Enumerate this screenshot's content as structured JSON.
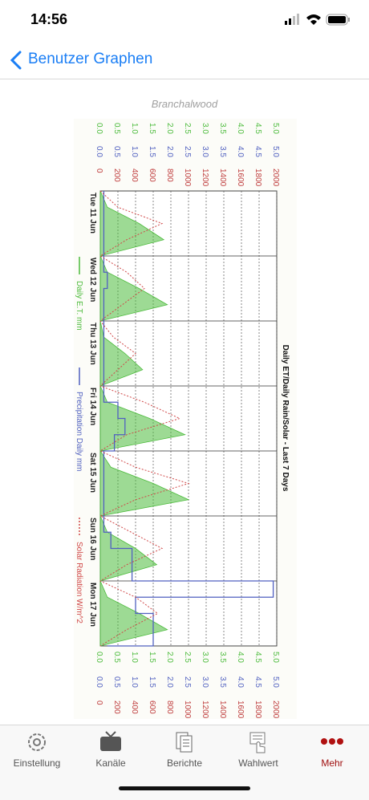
{
  "status_bar": {
    "time": "14:56"
  },
  "nav": {
    "back_label": "Benutzer Graphen"
  },
  "graph": {
    "caption": "Branchalwood"
  },
  "chart_data": {
    "type": "line",
    "title": "Daily ET/Daily Rain/Solar - Last 7 Days",
    "day_labels": [
      "Tue 11 Jun",
      "Wed 12 Jun",
      "Thu 13 Jun",
      "Fri 14 Jun",
      "Sat 15 Jun",
      "Sun 16 Jun",
      "Mon 17 Jun"
    ],
    "series": [
      {
        "name": "Daily E.T. mm",
        "color": "#4cbb3c",
        "axis": "et",
        "values": [
          0,
          0.2,
          1.1,
          1.8,
          0,
          0.2,
          1.1,
          1.9,
          0,
          0.1,
          0.7,
          1.2,
          0,
          0.2,
          1.4,
          2.4,
          0,
          0.3,
          1.5,
          2.5,
          0,
          0.2,
          1.0,
          1.6,
          0,
          0.2,
          1.1,
          1.9,
          0
        ]
      },
      {
        "name": "Precipitation Daily mm",
        "color": "#5060c0",
        "axis": "precip",
        "values": [
          0.1,
          0.1,
          0.1,
          0.1,
          0.1,
          0.2,
          0.1,
          0.1,
          0.1,
          0.1,
          0.1,
          0.1,
          0.1,
          0.5,
          0.7,
          0.4,
          0.1,
          0.1,
          0.1,
          0.1,
          0.1,
          0.3,
          0.9,
          0.9,
          4.9,
          1.0,
          1.5,
          1.5,
          0.2
        ]
      },
      {
        "name": "Solar Radiation W/m^2",
        "color": "#d04848",
        "axis": "solar",
        "values": [
          0,
          200,
          700,
          300,
          0,
          300,
          500,
          250,
          0,
          150,
          400,
          200,
          0,
          500,
          900,
          300,
          0,
          400,
          1000,
          400,
          0,
          350,
          700,
          300,
          0,
          400,
          650,
          300,
          0
        ]
      }
    ],
    "axes": {
      "et": {
        "color": "#4cbb3c",
        "lim": [
          0,
          5
        ],
        "ticks": [
          {
            "value": 0,
            "label": "0.0"
          },
          {
            "value": 0.5,
            "label": "0.5"
          },
          {
            "value": 1,
            "label": "1.0"
          },
          {
            "value": 1.5,
            "label": "1.5"
          },
          {
            "value": 2,
            "label": "2.0"
          },
          {
            "value": 2.5,
            "label": "2.5"
          },
          {
            "value": 3,
            "label": "3.0"
          },
          {
            "value": 3.5,
            "label": "3.5"
          },
          {
            "value": 4,
            "label": "4.0"
          },
          {
            "value": 4.5,
            "label": "4.5"
          },
          {
            "value": 5,
            "label": "5.0"
          }
        ]
      },
      "precip": {
        "color": "#5060c0",
        "lim": [
          0,
          5
        ],
        "ticks": [
          {
            "value": 0,
            "label": "0.0"
          },
          {
            "value": 0.5,
            "label": "0.5"
          },
          {
            "value": 1,
            "label": "1.0"
          },
          {
            "value": 1.5,
            "label": "1.5"
          },
          {
            "value": 2,
            "label": "2.0"
          },
          {
            "value": 2.5,
            "label": "2.5"
          },
          {
            "value": 3,
            "label": "3.0"
          },
          {
            "value": 3.5,
            "label": "3.5"
          },
          {
            "value": 4,
            "label": "4.0"
          },
          {
            "value": 4.5,
            "label": "4.5"
          },
          {
            "value": 5,
            "label": "5.0"
          }
        ]
      },
      "solar": {
        "color": "#c04040",
        "lim": [
          0,
          2000
        ],
        "ticks": [
          0,
          200,
          400,
          600,
          800,
          1000,
          1200,
          1400,
          1600,
          1800,
          2000
        ]
      }
    },
    "grid": true
  },
  "tab_bar": {
    "items": [
      "Einstellung",
      "Kanäle",
      "Berichte",
      "Wahlwert",
      "Mehr"
    ],
    "active": 4
  }
}
